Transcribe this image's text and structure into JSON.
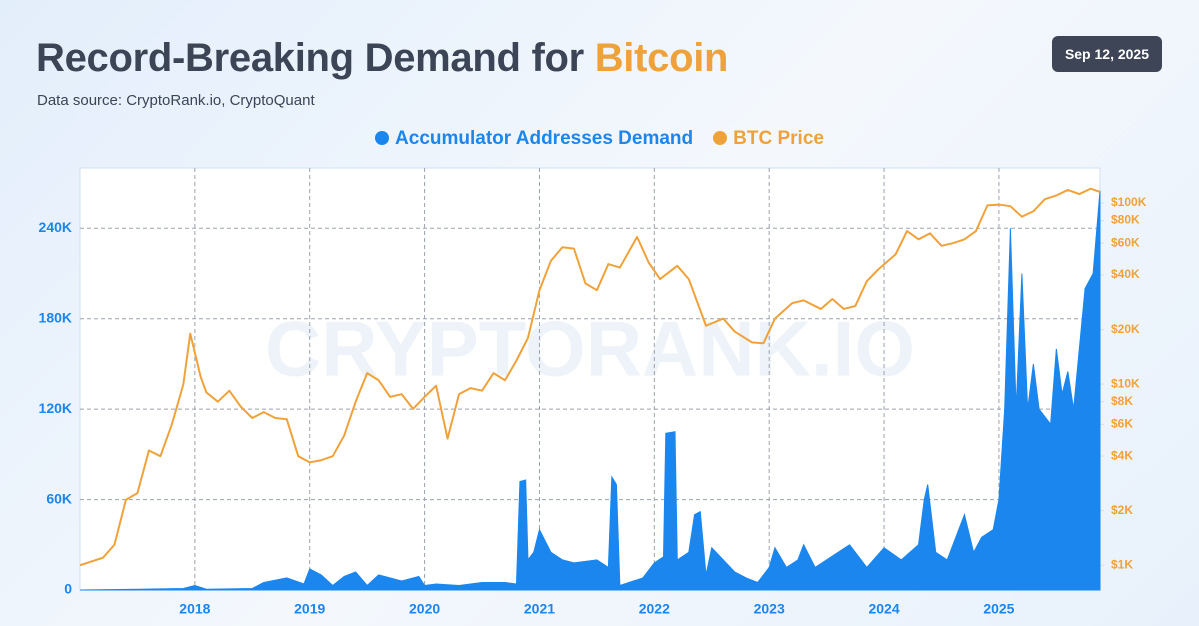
{
  "chart_data": {
    "type": "dual-axis-area-line",
    "title": "Record-Breaking Demand for",
    "title_highlight": "Bitcoin",
    "subtitle": "Data source: CryptoRank.io, CryptoQuant",
    "date": "Sep 12, 2025",
    "watermark": "CRYPTORANK.IO",
    "xlim": [
      2017.0,
      2025.88
    ],
    "xticks": [
      2018,
      2019,
      2020,
      2021,
      2022,
      2023,
      2024,
      2025
    ],
    "ylim": [
      0,
      280000
    ],
    "yticks": [
      0,
      {
        "value": 60000,
        "label": "60K"
      },
      {
        "value": 120000,
        "label": "120K"
      },
      {
        "value": 180000,
        "label": "180K"
      },
      {
        "value": 240000,
        "label": "240K"
      }
    ],
    "y2lim": [
      730,
      156000
    ],
    "y2log": true,
    "y2ticks": [
      {
        "value": 1000,
        "label": "$1K"
      },
      {
        "value": 2000,
        "label": "$2K"
      },
      {
        "value": 4000,
        "label": "$4K"
      },
      {
        "value": 6000,
        "label": "$6K"
      },
      {
        "value": 8000,
        "label": "$8K"
      },
      {
        "value": 10000,
        "label": "$10K"
      },
      {
        "value": 20000,
        "label": "$20K"
      },
      {
        "value": 40000,
        "label": "$40K"
      },
      {
        "value": 60000,
        "label": "$60K"
      },
      {
        "value": 80000,
        "label": "$80K"
      },
      {
        "value": 100000,
        "label": "$100K"
      }
    ],
    "grid": true,
    "series": [
      {
        "name": "BTC Price",
        "color": "#f0a23a",
        "axis": "y2",
        "kind": "line",
        "x": [
          2017.0,
          2017.1,
          2017.2,
          2017.3,
          2017.4,
          2017.5,
          2017.6,
          2017.7,
          2017.8,
          2017.9,
          2017.96,
          2018.05,
          2018.1,
          2018.2,
          2018.3,
          2018.4,
          2018.5,
          2018.6,
          2018.7,
          2018.8,
          2018.9,
          2019.0,
          2019.1,
          2019.2,
          2019.3,
          2019.4,
          2019.5,
          2019.6,
          2019.7,
          2019.8,
          2019.9,
          2020.0,
          2020.1,
          2020.2,
          2020.3,
          2020.4,
          2020.5,
          2020.6,
          2020.7,
          2020.8,
          2020.9,
          2021.0,
          2021.1,
          2021.2,
          2021.3,
          2021.4,
          2021.5,
          2021.6,
          2021.7,
          2021.85,
          2021.95,
          2022.05,
          2022.2,
          2022.3,
          2022.45,
          2022.6,
          2022.7,
          2022.85,
          2022.95,
          2023.05,
          2023.2,
          2023.3,
          2023.45,
          2023.55,
          2023.65,
          2023.75,
          2023.85,
          2023.95,
          2024.1,
          2024.2,
          2024.3,
          2024.4,
          2024.5,
          2024.6,
          2024.7,
          2024.8,
          2024.9,
          2025.0,
          2025.1,
          2025.2,
          2025.3,
          2025.4,
          2025.5,
          2025.6,
          2025.7,
          2025.8,
          2025.88
        ],
        "values": [
          1000,
          1050,
          1100,
          1300,
          2300,
          2500,
          4300,
          4000,
          6000,
          10000,
          19000,
          11000,
          9000,
          8000,
          9200,
          7500,
          6500,
          7000,
          6500,
          6400,
          4000,
          3700,
          3800,
          4000,
          5200,
          8000,
          11500,
          10500,
          8500,
          8800,
          7300,
          8500,
          9800,
          5000,
          8800,
          9500,
          9200,
          11500,
          10500,
          13500,
          18000,
          33000,
          48000,
          57000,
          56000,
          36000,
          33000,
          46000,
          44000,
          65000,
          47000,
          38000,
          45000,
          38000,
          21000,
          23000,
          19500,
          17000,
          16800,
          23000,
          28000,
          29000,
          26000,
          29500,
          26000,
          27000,
          37000,
          43000,
          52000,
          70000,
          63000,
          68000,
          58000,
          60000,
          63000,
          70000,
          97000,
          98000,
          96000,
          84000,
          90000,
          105000,
          110000,
          118000,
          112000,
          120000,
          115000
        ]
      },
      {
        "name": "Accumulator Addresses Demand",
        "color": "#1a86ee",
        "axis": "y",
        "kind": "area",
        "x": [
          2017.0,
          2017.5,
          2017.9,
          2018.0,
          2018.1,
          2018.5,
          2018.6,
          2018.8,
          2018.95,
          2019.0,
          2019.1,
          2019.2,
          2019.3,
          2019.4,
          2019.5,
          2019.6,
          2019.8,
          2019.95,
          2020.0,
          2020.1,
          2020.3,
          2020.5,
          2020.7,
          2020.8,
          2020.83,
          2020.88,
          2020.9,
          2020.95,
          2021.0,
          2021.1,
          2021.2,
          2021.3,
          2021.5,
          2021.6,
          2021.63,
          2021.67,
          2021.7,
          2021.9,
          2022.0,
          2022.08,
          2022.1,
          2022.18,
          2022.2,
          2022.3,
          2022.35,
          2022.4,
          2022.45,
          2022.5,
          2022.6,
          2022.7,
          2022.8,
          2022.9,
          2023.0,
          2023.05,
          2023.15,
          2023.25,
          2023.3,
          2023.4,
          2023.6,
          2023.7,
          2023.85,
          2024.0,
          2024.15,
          2024.3,
          2024.35,
          2024.38,
          2024.45,
          2024.55,
          2024.65,
          2024.7,
          2024.78,
          2024.85,
          2024.95,
          2025.0,
          2025.05,
          2025.1,
          2025.15,
          2025.2,
          2025.25,
          2025.3,
          2025.35,
          2025.45,
          2025.5,
          2025.55,
          2025.6,
          2025.65,
          2025.75,
          2025.82,
          2025.88
        ],
        "values": [
          0,
          500,
          1000,
          3000,
          500,
          1000,
          5000,
          8000,
          4000,
          14000,
          10000,
          3000,
          9000,
          12000,
          3000,
          10000,
          6000,
          9000,
          3000,
          4000,
          3000,
          5000,
          5000,
          4000,
          72000,
          73000,
          20000,
          25000,
          40000,
          25000,
          20000,
          18000,
          20000,
          15000,
          75000,
          70000,
          3000,
          8000,
          18000,
          22000,
          104000,
          105000,
          20000,
          25000,
          50000,
          52000,
          10000,
          28000,
          20000,
          12000,
          8000,
          5000,
          15000,
          28000,
          15000,
          20000,
          30000,
          15000,
          25000,
          30000,
          15000,
          28000,
          20000,
          30000,
          60000,
          70000,
          25000,
          20000,
          40000,
          50000,
          25000,
          35000,
          40000,
          60000,
          120000,
          240000,
          120000,
          210000,
          120000,
          150000,
          120000,
          110000,
          160000,
          130000,
          145000,
          120000,
          200000,
          210000,
          265000
        ]
      }
    ]
  }
}
